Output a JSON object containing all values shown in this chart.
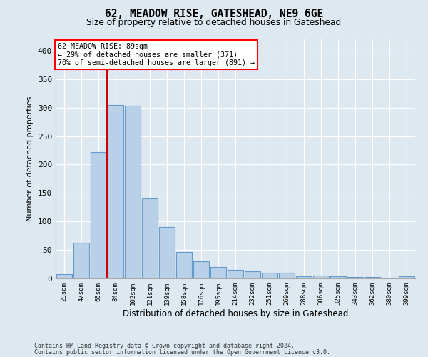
{
  "title1": "62, MEADOW RISE, GATESHEAD, NE9 6GE",
  "title2": "Size of property relative to detached houses in Gateshead",
  "xlabel": "Distribution of detached houses by size in Gateshead",
  "ylabel": "Number of detached properties",
  "categories": [
    "28sqm",
    "47sqm",
    "65sqm",
    "84sqm",
    "102sqm",
    "121sqm",
    "139sqm",
    "158sqm",
    "176sqm",
    "195sqm",
    "214sqm",
    "232sqm",
    "251sqm",
    "269sqm",
    "288sqm",
    "306sqm",
    "325sqm",
    "343sqm",
    "362sqm",
    "380sqm",
    "399sqm"
  ],
  "values": [
    8,
    63,
    222,
    305,
    303,
    140,
    90,
    47,
    30,
    20,
    15,
    13,
    10,
    10,
    4,
    5,
    4,
    2,
    2,
    1,
    4
  ],
  "bar_color": "#b8d0e8",
  "bar_edge_color": "#6699cc",
  "vline_color": "#cc0000",
  "vline_index": 2.5,
  "annotation_text": "62 MEADOW RISE: 89sqm\n← 29% of detached houses are smaller (371)\n70% of semi-detached houses are larger (891) →",
  "background_color": "#dde8f0",
  "ylim": [
    0,
    420
  ],
  "yticks": [
    0,
    50,
    100,
    150,
    200,
    250,
    300,
    350,
    400
  ],
  "footer1": "Contains HM Land Registry data © Crown copyright and database right 2024.",
  "footer2": "Contains public sector information licensed under the Open Government Licence v3.0."
}
